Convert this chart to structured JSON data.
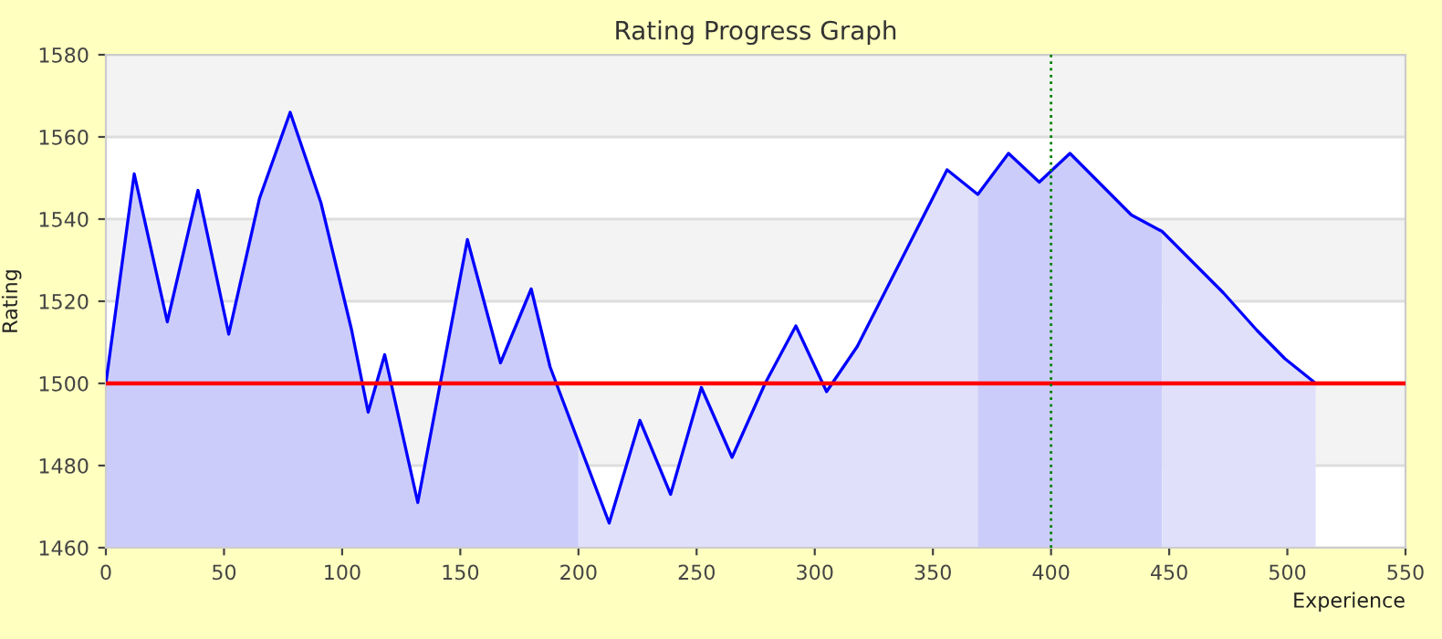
{
  "chart_data": {
    "type": "line",
    "title": "Rating Progress Graph",
    "xlabel": "Experience",
    "ylabel": "Rating",
    "xlim": [
      0,
      550
    ],
    "xticks": [
      0,
      50,
      100,
      150,
      200,
      250,
      300,
      350,
      400,
      450,
      500,
      550
    ],
    "ylim": [
      1460,
      1580
    ],
    "yticks": [
      1460,
      1480,
      1500,
      1520,
      1540,
      1560,
      1580
    ],
    "grid": "y",
    "legend": false,
    "series": [
      {
        "type": "area",
        "color": "#ccccfa",
        "x": [
          0,
          12,
          26,
          39,
          52,
          65,
          78,
          91,
          104,
          111,
          118,
          132,
          153,
          167,
          180,
          188,
          200
        ],
        "values": [
          1500,
          1551,
          1515,
          1547,
          1512,
          1545,
          1566,
          1544,
          1513,
          1493,
          1507,
          1471,
          1535,
          1505,
          1523,
          1504,
          1486
        ]
      },
      {
        "type": "area",
        "color": "#e0e0fa",
        "x": [
          200,
          213,
          226,
          239,
          252,
          265,
          279,
          292,
          305,
          318,
          356,
          369
        ],
        "values": [
          1486,
          1466,
          1491,
          1473,
          1499,
          1482,
          1500,
          1514,
          1498,
          1509,
          1552,
          1546
        ]
      },
      {
        "type": "area",
        "color": "#ccccfa",
        "x": [
          369,
          382,
          395,
          408,
          434,
          447
        ],
        "values": [
          1546,
          1556,
          1549,
          1556,
          1541,
          1537
        ]
      },
      {
        "type": "area",
        "color": "#e0e0fa",
        "x": [
          447,
          473,
          487,
          499,
          512
        ],
        "values": [
          1537,
          1522,
          1513,
          1506,
          1500
        ]
      },
      {
        "color": "#0000ff",
        "x": [
          0,
          12,
          26,
          39,
          52,
          65,
          78,
          91,
          104,
          111,
          118,
          132,
          153,
          167,
          180,
          188,
          213,
          226,
          239,
          252,
          265,
          279,
          292,
          305,
          318,
          356,
          369,
          382,
          395,
          408,
          434,
          447,
          473,
          487,
          499,
          512
        ],
        "values": [
          1500,
          1551,
          1515,
          1547,
          1512,
          1545,
          1566,
          1544,
          1513,
          1493,
          1507,
          1471,
          1535,
          1505,
          1523,
          1504,
          1466,
          1491,
          1473,
          1499,
          1482,
          1500,
          1514,
          1498,
          1509,
          1552,
          1546,
          1556,
          1549,
          1556,
          1541,
          1537,
          1522,
          1513,
          1506,
          1500
        ]
      }
    ],
    "ref_lines": [
      {
        "axis": "y",
        "value": 1500,
        "color": "#ff0000",
        "line_style": "solid"
      },
      {
        "axis": "x",
        "value": 400,
        "color": "#008000",
        "line_style": "dotted"
      }
    ]
  }
}
